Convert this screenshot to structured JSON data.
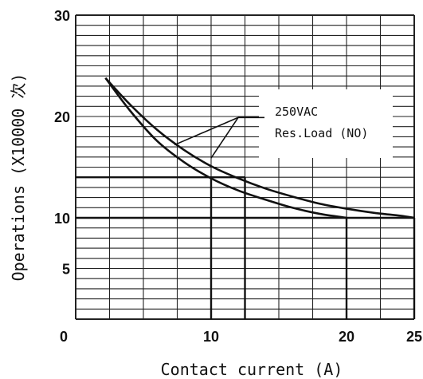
{
  "chart_data": {
    "type": "line",
    "title": "",
    "xlabel": "Contact current (A)",
    "ylabel": "Operations (X10000 次)",
    "xlim": [
      0,
      25
    ],
    "ylim": [
      0,
      30
    ],
    "x_ticks": [
      0,
      10,
      20,
      25
    ],
    "y_ticks": [
      5,
      10,
      20,
      30
    ],
    "x_grid_step": 2.5,
    "y_grid_step": 1,
    "grid": true,
    "annotation": [
      "250VAC",
      "Res.Load (NO)"
    ],
    "series": [
      {
        "x": [
          2.2,
          4,
          6,
          8,
          10,
          12,
          14,
          16,
          18,
          20,
          22,
          24,
          25
        ],
        "y": [
          23.8,
          21.2,
          18.7,
          16.7,
          15.1,
          13.9,
          12.9,
          12.1,
          11.4,
          10.9,
          10.5,
          10.2,
          10.0
        ]
      },
      {
        "x": [
          2.2,
          4,
          6,
          8,
          10,
          12,
          14,
          16,
          18,
          20
        ],
        "y": [
          23.8,
          20.6,
          17.6,
          15.5,
          13.9,
          12.7,
          11.8,
          11.0,
          10.4,
          10.0
        ]
      }
    ],
    "reference_lines": [
      {
        "from": [
          0,
          14
        ],
        "to": [
          12.5,
          14
        ],
        "down_to_x": [
          10,
          12.5
        ]
      },
      {
        "from": [
          0,
          10
        ],
        "to": [
          25,
          10
        ],
        "down_to_x": [
          20,
          25
        ]
      }
    ]
  }
}
